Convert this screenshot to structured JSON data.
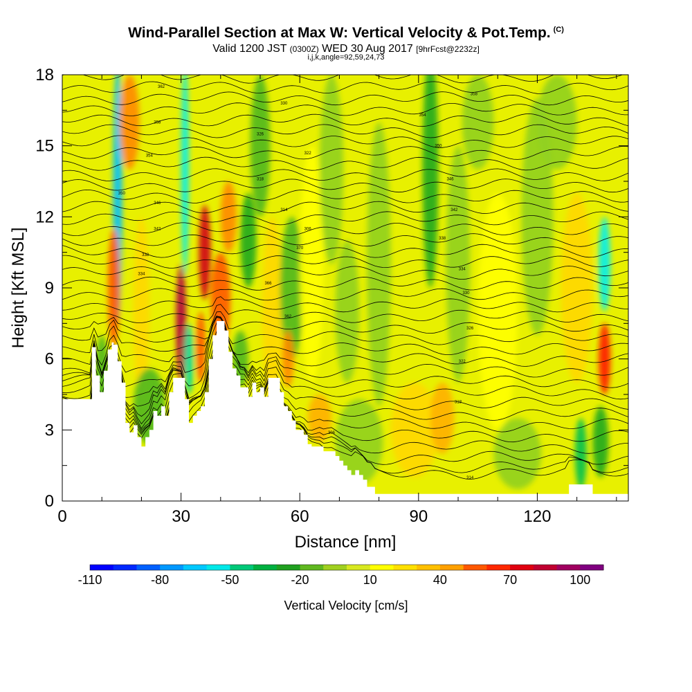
{
  "header": {
    "title": "Wind-Parallel Section at Max W: Vertical Velocity & Pot.Temp.",
    "copyright": "(C)",
    "valid_prefix": "Valid 1200 JST",
    "valid_utc": "(0300Z)",
    "valid_date": "WED 30 Aug 2017",
    "forecast": "[9hrFcst@2232z]",
    "indices": "i,j,k,angle=92,59,24,73"
  },
  "colors": {
    "scale": [
      "#0000ff",
      "#0040ff",
      "#0080ff",
      "#00c0ff",
      "#00f0f0",
      "#00d8a0",
      "#00c050",
      "#20a820",
      "#50b820",
      "#90d020",
      "#d0e820",
      "#ffff00",
      "#ffd800",
      "#ffb000",
      "#ff8800",
      "#ff5800",
      "#ff1800",
      "#d00018",
      "#b00040",
      "#900070",
      "#600090"
    ],
    "background_field": "#e8f000",
    "terrain": "#ffffff",
    "contour": "#000000"
  },
  "chart_data": {
    "type": "heatmap",
    "title": "Wind-Parallel Section at Max W: Vertical Velocity & Pot.Temp.",
    "xlabel": "Distance [nm]",
    "ylabel": "Height [Kft MSL]",
    "xlim": [
      0,
      143
    ],
    "ylim": [
      0,
      18
    ],
    "x_ticks": [
      0,
      30,
      60,
      90,
      120
    ],
    "y_ticks": [
      0,
      3,
      6,
      9,
      12,
      15,
      18
    ],
    "colorbar": {
      "label": "Vertical Velocity [cm/s]",
      "min": -110,
      "max": 110,
      "step": 10,
      "tick_labels": [
        "-110",
        "-80",
        "-50",
        "-20",
        "10",
        "40",
        "70",
        "100"
      ],
      "tick_values": [
        -110,
        -80,
        -50,
        -20,
        10,
        40,
        70,
        100
      ]
    },
    "terrain_top_kft": [
      [
        0,
        4.3
      ],
      [
        7.5,
        4.3
      ],
      [
        7.5,
        6.5
      ],
      [
        8.5,
        6.5
      ],
      [
        8.5,
        5.3
      ],
      [
        9.5,
        5.3
      ],
      [
        9.5,
        4.6
      ],
      [
        10.5,
        4.6
      ],
      [
        10.5,
        5.5
      ],
      [
        11.5,
        5.5
      ],
      [
        11.5,
        6.4
      ],
      [
        12.5,
        6.4
      ],
      [
        12.5,
        6.7
      ],
      [
        13,
        6.7
      ],
      [
        13,
        6.6
      ],
      [
        14,
        6.6
      ],
      [
        14,
        5.9
      ],
      [
        15,
        5.9
      ],
      [
        15,
        5.0
      ],
      [
        16,
        5.0
      ],
      [
        16,
        3.3
      ],
      [
        17,
        3.3
      ],
      [
        17,
        2.9
      ],
      [
        18,
        2.9
      ],
      [
        18,
        3.2
      ],
      [
        19,
        3.2
      ],
      [
        19,
        2.7
      ],
      [
        20,
        2.7
      ],
      [
        20,
        2.3
      ],
      [
        21,
        2.3
      ],
      [
        21,
        2.7
      ],
      [
        22,
        2.7
      ],
      [
        22,
        3.0
      ],
      [
        23,
        3.0
      ],
      [
        23,
        3.8
      ],
      [
        24,
        3.8
      ],
      [
        24,
        3.6
      ],
      [
        25,
        3.6
      ],
      [
        25,
        4.0
      ],
      [
        26,
        4.0
      ],
      [
        26,
        3.6
      ],
      [
        27,
        3.6
      ],
      [
        27,
        4.6
      ],
      [
        28,
        4.6
      ],
      [
        28,
        5.2
      ],
      [
        29,
        5.2
      ],
      [
        29,
        5.2
      ],
      [
        30,
        5.2
      ],
      [
        30,
        5.2
      ],
      [
        31,
        5.2
      ],
      [
        31,
        4.3
      ],
      [
        32,
        4.3
      ],
      [
        32,
        3.3
      ],
      [
        33,
        3.3
      ],
      [
        33,
        3.6
      ],
      [
        34,
        3.6
      ],
      [
        34,
        3.8
      ],
      [
        35,
        3.8
      ],
      [
        35,
        4.0
      ],
      [
        36,
        4.0
      ],
      [
        36,
        4.6
      ],
      [
        37,
        4.6
      ],
      [
        37,
        6.0
      ],
      [
        38,
        6.0
      ],
      [
        38,
        7.0
      ],
      [
        39,
        7.0
      ],
      [
        39,
        7.6
      ],
      [
        41,
        7.6
      ],
      [
        41,
        7.2
      ],
      [
        42,
        7.2
      ],
      [
        42,
        6.3
      ],
      [
        43,
        6.3
      ],
      [
        43,
        5.6
      ],
      [
        44,
        5.6
      ],
      [
        44,
        5.3
      ],
      [
        45,
        5.3
      ],
      [
        45,
        4.8
      ],
      [
        46,
        4.8
      ],
      [
        46,
        4.8
      ],
      [
        47,
        4.8
      ],
      [
        47,
        4.4
      ],
      [
        48,
        4.4
      ],
      [
        48,
        5.0
      ],
      [
        49,
        5.0
      ],
      [
        49,
        4.6
      ],
      [
        50,
        4.6
      ],
      [
        50,
        4.8
      ],
      [
        51,
        4.8
      ],
      [
        51,
        4.4
      ],
      [
        52,
        4.4
      ],
      [
        52,
        5.2
      ],
      [
        55,
        5.2
      ],
      [
        55,
        4.6
      ],
      [
        56,
        4.6
      ],
      [
        56,
        4.0
      ],
      [
        57,
        4.0
      ],
      [
        57,
        3.8
      ],
      [
        58,
        3.8
      ],
      [
        58,
        3.4
      ],
      [
        59,
        3.4
      ],
      [
        59,
        3.0
      ],
      [
        61,
        3.0
      ],
      [
        61,
        2.8
      ],
      [
        62,
        2.8
      ],
      [
        62,
        2.4
      ],
      [
        63,
        2.4
      ],
      [
        63,
        2.3
      ],
      [
        64,
        2.3
      ],
      [
        64,
        2.3
      ],
      [
        66,
        2.3
      ],
      [
        66,
        2.1
      ],
      [
        69,
        2.1
      ],
      [
        69,
        1.9
      ],
      [
        70,
        1.9
      ],
      [
        70,
        1.7
      ],
      [
        71,
        1.7
      ],
      [
        71,
        1.5
      ],
      [
        72,
        1.5
      ],
      [
        72,
        1.3
      ],
      [
        73,
        1.3
      ],
      [
        73,
        1.1
      ],
      [
        74,
        1.1
      ],
      [
        74,
        1.3
      ],
      [
        75,
        1.3
      ],
      [
        75,
        1.1
      ],
      [
        76,
        1.1
      ],
      [
        76,
        0.9
      ],
      [
        77,
        0.9
      ],
      [
        77,
        0.6
      ],
      [
        79,
        0.6
      ],
      [
        79,
        0.3
      ],
      [
        128,
        0.3
      ],
      [
        128,
        0.7
      ],
      [
        134,
        0.7
      ],
      [
        134,
        0.3
      ],
      [
        136,
        0.3
      ],
      [
        136,
        0.3
      ],
      [
        143,
        0.3
      ]
    ],
    "theta_contour_count": 38,
    "contour_labels": [
      "306",
      "314",
      "318",
      "322",
      "326",
      "330",
      "334",
      "338",
      "342",
      "346",
      "350",
      "354",
      "358",
      "362",
      "366",
      "370"
    ]
  },
  "axes": {
    "xlabel": "Distance [nm]",
    "ylabel": "Height [Kft MSL]"
  }
}
